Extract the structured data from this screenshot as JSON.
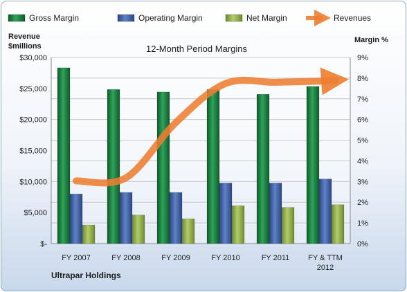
{
  "chart_data": {
    "type": "bar",
    "title": "12-Month Period Margins",
    "categories": [
      "FY 2007",
      "FY 2008",
      "FY 2009",
      "FY 2010",
      "FY 2011",
      "FY & TTM 2012"
    ],
    "left_axis": {
      "title_line1": "Revenue",
      "title_line2": "$millions",
      "range": [
        0,
        30000
      ],
      "ticks": [
        "$-",
        "$5,000",
        "$10,000",
        "$15,000",
        "$20,000",
        "$25,000",
        "$30,000"
      ]
    },
    "right_axis": {
      "title": "Margin %",
      "range": [
        0,
        9
      ],
      "ticks": [
        "0%",
        "1%",
        "2%",
        "3%",
        "4%",
        "5%",
        "6%",
        "7%",
        "8%",
        "9%"
      ]
    },
    "series": [
      {
        "name": "Gross Margin",
        "axis": "right",
        "color": "#1a7a3d",
        "values": [
          8.5,
          7.45,
          7.33,
          7.45,
          7.22,
          7.6
        ]
      },
      {
        "name": "Operating Margin",
        "axis": "right",
        "color": "#3f62a8",
        "values": [
          2.4,
          2.47,
          2.47,
          2.93,
          2.93,
          3.12
        ]
      },
      {
        "name": "Net Margin",
        "axis": "right",
        "color": "#90ad4a",
        "values": [
          0.9,
          1.38,
          1.2,
          1.83,
          1.75,
          1.88
        ]
      },
      {
        "name": "Revenues",
        "axis": "left",
        "type": "line",
        "color": "#ed7d31",
        "values": [
          10100,
          10600,
          19500,
          25800,
          26000,
          26200
        ]
      }
    ],
    "legend_position": "top",
    "grid": true,
    "footnote": "Ultrapar Holdings"
  }
}
